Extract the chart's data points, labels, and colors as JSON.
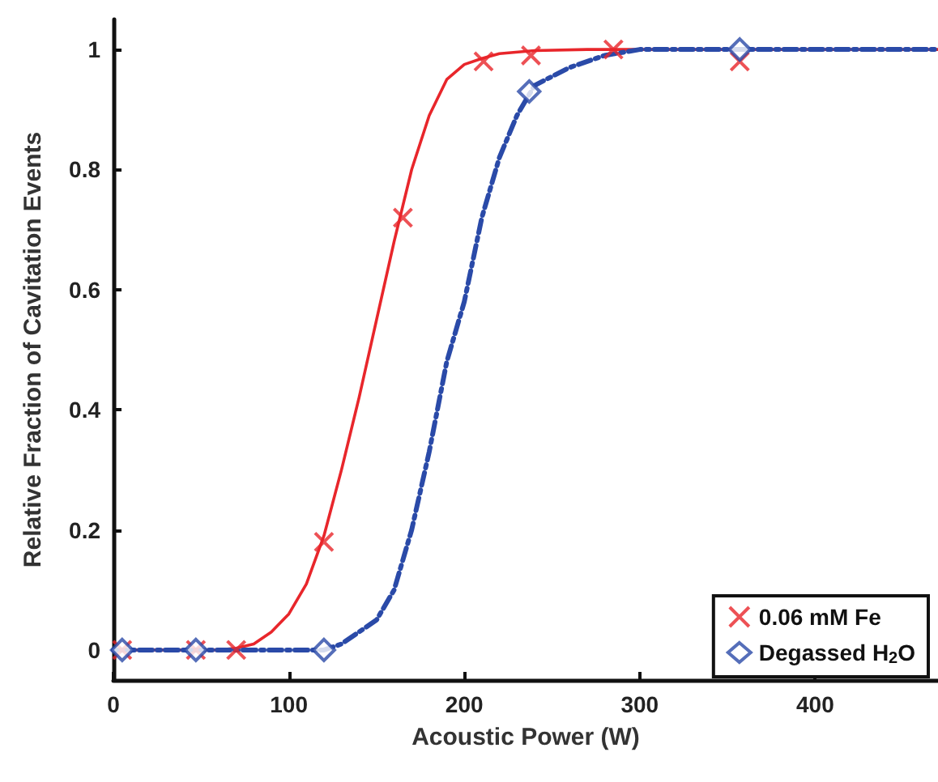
{
  "chart_data": {
    "type": "scatter",
    "xlabel": "Acoustic Power (W)",
    "ylabel": "Relative Fraction of Cavitation Events",
    "xlim": [
      0,
      470
    ],
    "xticks": [
      0,
      100,
      200,
      300,
      400
    ],
    "ylim": [
      -0.05,
      1.05
    ],
    "yticks": [
      0,
      0.2,
      0.4,
      0.6,
      0.8,
      1
    ],
    "grid": false,
    "legend": "bottom right",
    "series": [
      {
        "name": "0.06 mM Fe",
        "marker": "cross",
        "color": "#e8262b",
        "x": [
          5,
          47,
          70,
          120,
          165,
          211,
          238,
          285,
          357
        ],
        "values": [
          0,
          0,
          0,
          0.18,
          0.72,
          0.98,
          0.99,
          1.0,
          0.98
        ]
      },
      {
        "name": "Degassed H$_{2}$O",
        "marker": "diamond",
        "color": "#2a4aa8",
        "x": [
          5,
          47,
          120,
          237,
          357
        ],
        "values": [
          0,
          0,
          0,
          0.93,
          1.0
        ]
      },
      {
        "type": "line",
        "marker": "none",
        "line_style": "solid",
        "color": "#e8262b",
        "x": [
          0,
          60,
          70,
          80,
          90,
          100,
          110,
          120,
          130,
          140,
          150,
          160,
          170,
          180,
          190,
          200,
          210,
          220,
          240,
          270,
          470
        ],
        "values": [
          0,
          0,
          0.003,
          0.01,
          0.03,
          0.06,
          0.11,
          0.19,
          0.3,
          0.42,
          0.55,
          0.68,
          0.8,
          0.89,
          0.95,
          0.975,
          0.985,
          0.993,
          0.998,
          1,
          1
        ]
      },
      {
        "type": "line",
        "marker": "none",
        "line_style": "dashed",
        "color": "#2a4aa8",
        "x": [
          0,
          120,
          130,
          140,
          150,
          160,
          170,
          180,
          190,
          200,
          210,
          220,
          230,
          240,
          260,
          280,
          300,
          470
        ],
        "values": [
          0,
          0,
          0.01,
          0.03,
          0.05,
          0.1,
          0.2,
          0.33,
          0.48,
          0.58,
          0.72,
          0.82,
          0.89,
          0.94,
          0.97,
          0.99,
          1,
          1
        ]
      }
    ]
  }
}
